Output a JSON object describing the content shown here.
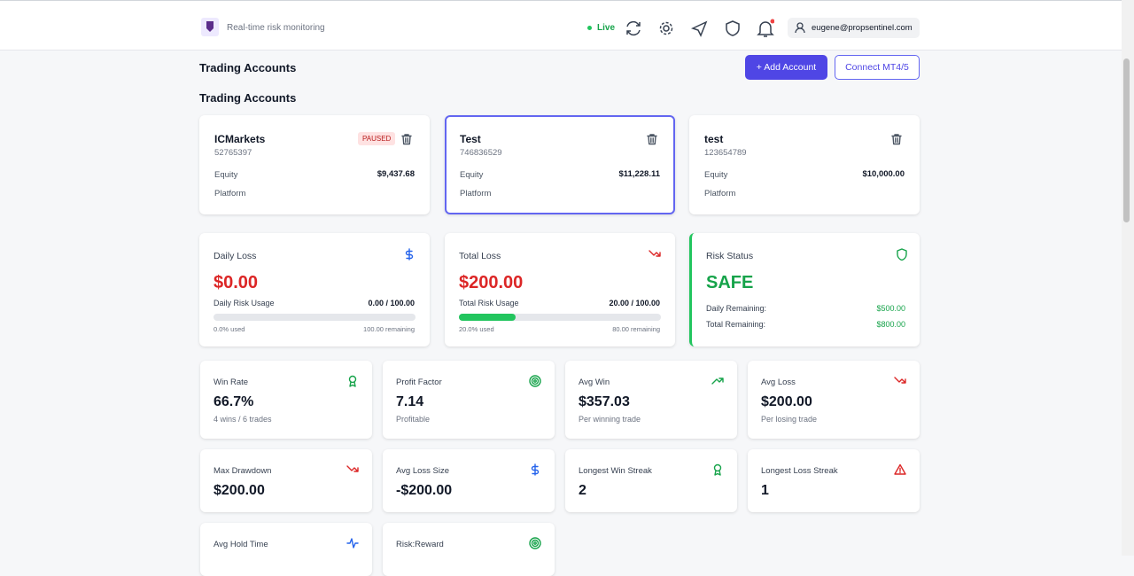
{
  "header": {
    "tagline": "Real-time risk monitoring",
    "status": "Live",
    "user": "eugene@propsentinel.com"
  },
  "page": {
    "title": "Trading Accounts",
    "add_button": "+ Add Account",
    "connect_button": "Connect MT4/5",
    "section_title": "Trading Accounts"
  },
  "accounts": [
    {
      "name": "ICMarkets",
      "number": "52765397",
      "badge": "PAUSED",
      "equity_label": "Equity",
      "equity": "$9,437.68",
      "platform_label": "Platform"
    },
    {
      "name": "Test",
      "number": "746836529",
      "equity_label": "Equity",
      "equity": "$11,228.11",
      "platform_label": "Platform",
      "selected": true
    },
    {
      "name": "test",
      "number": "123654789",
      "equity_label": "Equity",
      "equity": "$10,000.00",
      "platform_label": "Platform"
    }
  ],
  "risk": [
    {
      "title": "Daily Loss",
      "value": "$0.00",
      "usage_label": "Daily Risk Usage",
      "usage": "0.00 / 100.00",
      "used": "0.0% used",
      "remaining": "100.00 remaining",
      "icon": "dollar"
    },
    {
      "title": "Total Loss",
      "value": "$200.00",
      "usage_label": "Total Risk Usage",
      "usage": "20.00 / 100.00",
      "used": "20.0% used",
      "remaining": "80.00 remaining",
      "icon": "down"
    }
  ],
  "risk_status": {
    "title": "Risk Status",
    "value": "SAFE",
    "rows": [
      {
        "label": "Daily Remaining:",
        "value": "$500.00"
      },
      {
        "label": "Total Remaining:",
        "value": "$800.00"
      }
    ]
  },
  "stats": [
    {
      "label": "Win Rate",
      "value": "66.7%",
      "sub": "4 wins / 6 trades",
      "icon": "award"
    },
    {
      "label": "Profit Factor",
      "value": "7.14",
      "sub": "Profitable",
      "icon": "target"
    },
    {
      "label": "Avg Win",
      "value": "$357.03",
      "sub": "Per winning trade",
      "icon": "up"
    },
    {
      "label": "Avg Loss",
      "value": "$200.00",
      "sub": "Per losing trade",
      "icon": "down"
    },
    {
      "label": "Max Drawdown",
      "value": "$200.00",
      "icon": "down"
    },
    {
      "label": "Avg Loss Size",
      "value": "-$200.00",
      "icon": "dollar"
    },
    {
      "label": "Longest Win Streak",
      "value": "2",
      "icon": "award"
    },
    {
      "label": "Longest Loss Streak",
      "value": "1",
      "icon": "warn"
    },
    {
      "label": "Avg Hold Time",
      "icon": "pulse"
    },
    {
      "label": "Risk:Reward",
      "icon": "target"
    }
  ]
}
